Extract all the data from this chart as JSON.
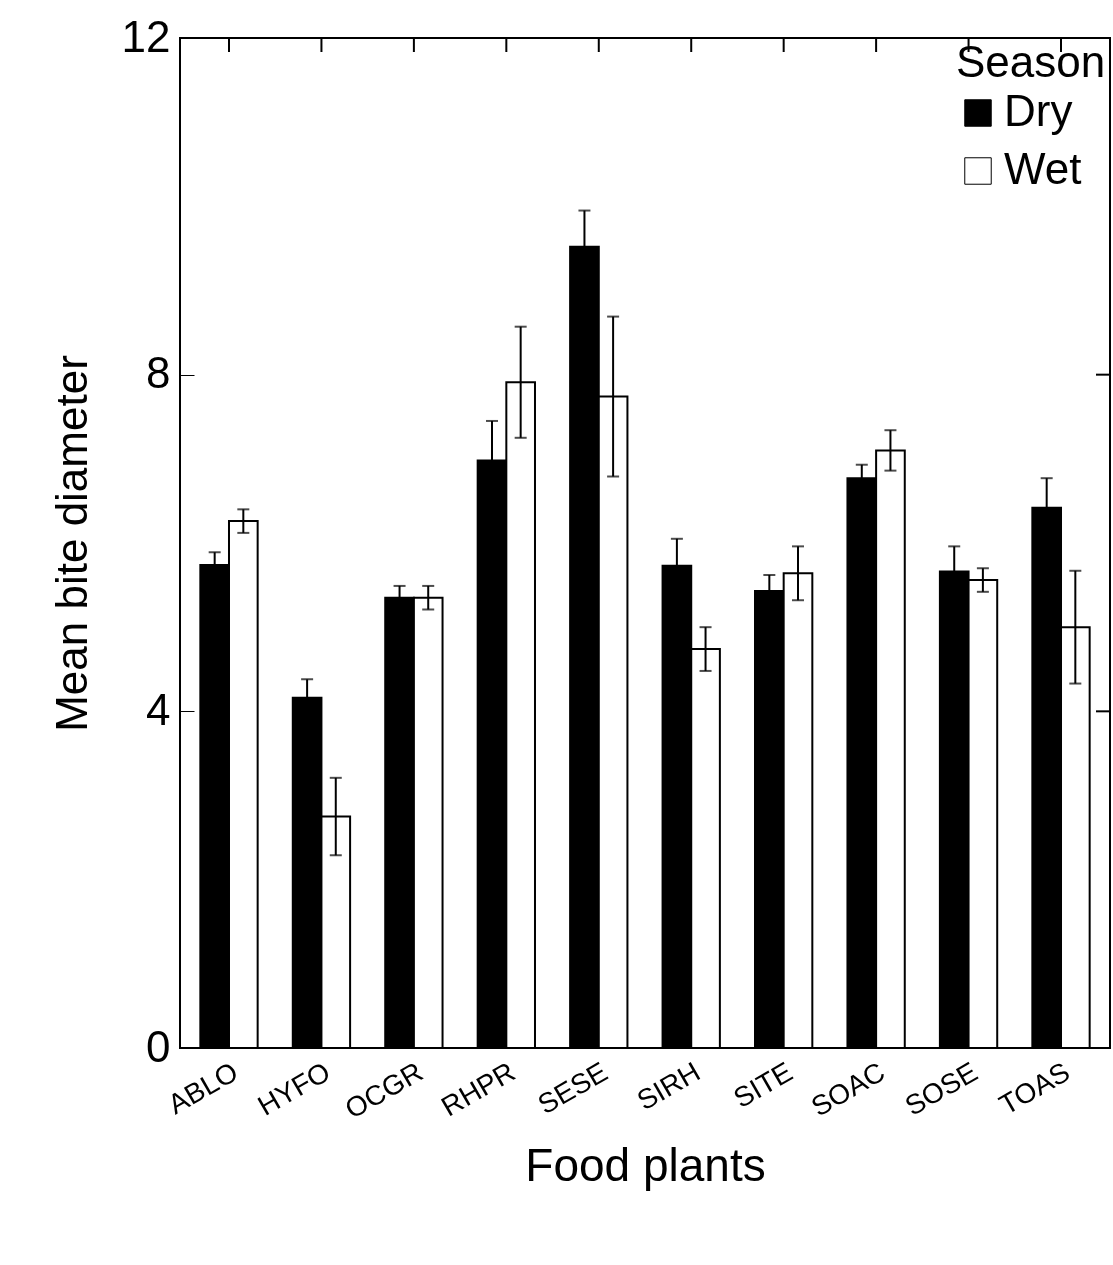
{
  "chart_data": {
    "type": "bar",
    "xlabel": "Food plants",
    "ylabel": "Mean bite diameter",
    "legend_title": "Season",
    "categories": [
      "ABLO",
      "HYFO",
      "OCGR",
      "RHPR",
      "SESE",
      "SIRH",
      "SITE",
      "SOAC",
      "SOSE",
      "TOAS"
    ],
    "series": [
      {
        "name": "Dry",
        "color": "#000000",
        "values": [
          5.74,
          4.16,
          5.35,
          6.98,
          9.52,
          5.73,
          5.43,
          6.77,
          5.66,
          6.42
        ],
        "errors": [
          0.15,
          0.22,
          0.14,
          0.47,
          0.43,
          0.32,
          0.19,
          0.16,
          0.3,
          0.35
        ]
      },
      {
        "name": "Wet",
        "color": "#ffffff",
        "values": [
          6.26,
          2.75,
          5.35,
          7.91,
          7.74,
          4.74,
          5.64,
          7.1,
          5.56,
          5.0
        ],
        "errors": [
          0.14,
          0.46,
          0.14,
          0.66,
          0.95,
          0.26,
          0.32,
          0.24,
          0.14,
          0.67
        ]
      }
    ],
    "ylim": [
      0,
      12
    ],
    "yticks": [
      0,
      4,
      8,
      12
    ],
    "legend": "top right",
    "grid": false
  }
}
